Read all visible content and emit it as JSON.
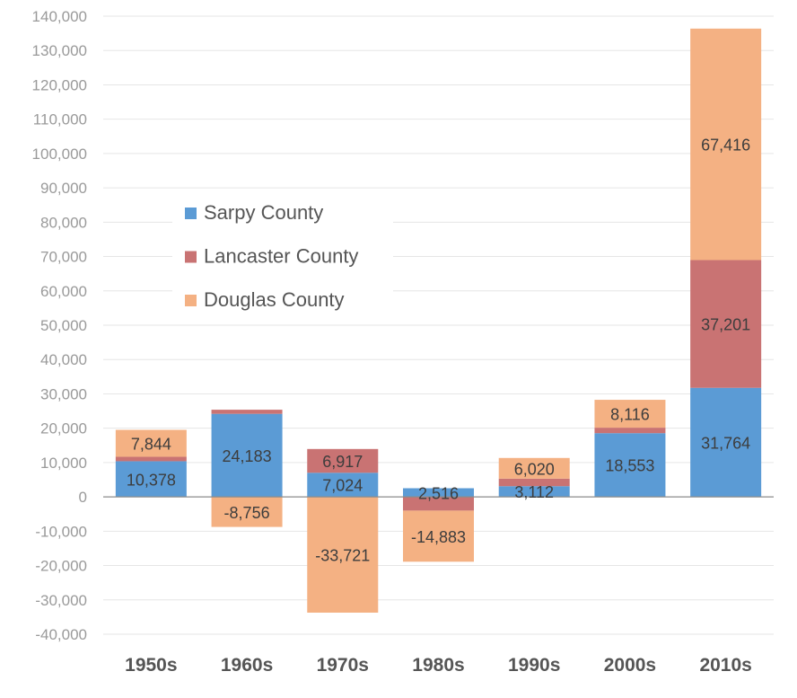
{
  "chart_data": {
    "type": "bar",
    "stacked": true,
    "title": "",
    "xlabel": "",
    "ylabel": "",
    "ylim": [
      -40000,
      140000
    ],
    "ytick_step": 10000,
    "ytick_labels": [
      "-40,000",
      "-30,000",
      "-20,000",
      "-10,000",
      "0",
      "10,000",
      "20,000",
      "30,000",
      "40,000",
      "50,000",
      "60,000",
      "70,000",
      "80,000",
      "90,000",
      "100,000",
      "110,000",
      "120,000",
      "130,000",
      "140,000"
    ],
    "categories": [
      "1950s",
      "1960s",
      "1970s",
      "1980s",
      "1990s",
      "2000s",
      "2010s"
    ],
    "series": [
      {
        "name": "Sarpy County",
        "color": "#5b9bd5",
        "values": [
          10378,
          24183,
          7024,
          2516,
          3112,
          18553,
          31764
        ]
      },
      {
        "name": "Lancaster County",
        "color": "#c97373",
        "values": [
          1300,
          1200,
          6917,
          -4000,
          2200,
          1600,
          37201
        ]
      },
      {
        "name": "Douglas County",
        "color": "#f4b183",
        "values": [
          7844,
          -8756,
          -33721,
          -14883,
          6020,
          8116,
          67416
        ]
      }
    ],
    "data_labels": [
      {
        "category": "1950s",
        "series": "Sarpy County",
        "text": "10,378"
      },
      {
        "category": "1950s",
        "series": "Douglas County",
        "text": "7,844"
      },
      {
        "category": "1960s",
        "series": "Sarpy County",
        "text": "24,183"
      },
      {
        "category": "1960s",
        "series": "Douglas County",
        "text": "-8,756"
      },
      {
        "category": "1970s",
        "series": "Sarpy County",
        "text": "7,024"
      },
      {
        "category": "1970s",
        "series": "Lancaster County",
        "text": "6,917"
      },
      {
        "category": "1970s",
        "series": "Douglas County",
        "text": "-33,721"
      },
      {
        "category": "1980s",
        "series": "Sarpy County",
        "text": "2,516"
      },
      {
        "category": "1980s",
        "series": "Douglas County",
        "text": "-14,883"
      },
      {
        "category": "1990s",
        "series": "Sarpy County",
        "text": "3,112"
      },
      {
        "category": "1990s",
        "series": "Douglas County",
        "text": "6,020"
      },
      {
        "category": "2000s",
        "series": "Sarpy County",
        "text": "18,553"
      },
      {
        "category": "2000s",
        "series": "Douglas County",
        "text": "8,116"
      },
      {
        "category": "2010s",
        "series": "Sarpy County",
        "text": "31,764"
      },
      {
        "category": "2010s",
        "series": "Lancaster County",
        "text": "37,201"
      },
      {
        "category": "2010s",
        "series": "Douglas County",
        "text": "67,416"
      }
    ],
    "legend": {
      "placement": "upper-left-inside",
      "entries": [
        "Sarpy County",
        "Lancaster County",
        "Douglas County"
      ]
    },
    "grid": true
  }
}
